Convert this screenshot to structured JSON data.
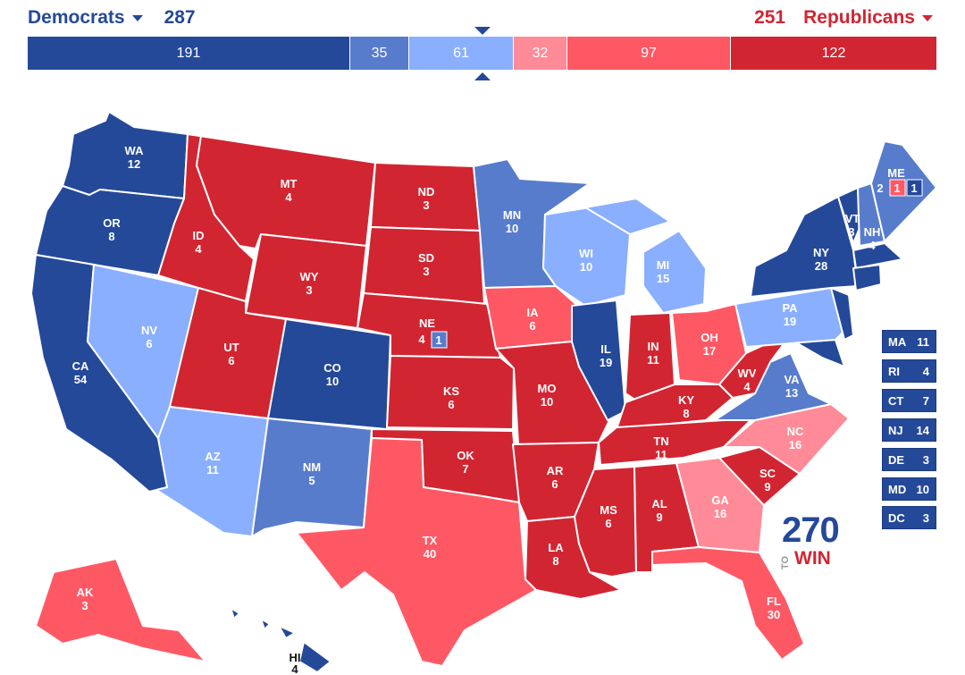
{
  "democrats": {
    "label": "Democrats",
    "total": "287"
  },
  "republicans": {
    "label": "Republicans",
    "total": "251"
  },
  "tally": [
    {
      "value": "191",
      "color": "#244999",
      "category": "safe-dem"
    },
    {
      "value": "35",
      "color": "#587ccc",
      "category": "likely-dem"
    },
    {
      "value": "61",
      "color": "#8aafff",
      "category": "lean-dem"
    },
    {
      "value": "32",
      "color": "#ff8b98",
      "category": "lean-rep"
    },
    {
      "value": "97",
      "color": "#ff5865",
      "category": "likely-rep"
    },
    {
      "value": "122",
      "color": "#d22532",
      "category": "safe-rep"
    }
  ],
  "colors": {
    "safe_dem": "#244999",
    "likely_dem": "#587ccc",
    "lean_dem": "#8aafff",
    "lean_rep": "#ff8b98",
    "likely_rep": "#ff5865",
    "safe_rep": "#d22532"
  },
  "states": {
    "WA": {
      "abbr": "WA",
      "ev": "12"
    },
    "OR": {
      "abbr": "OR",
      "ev": "8"
    },
    "CA": {
      "abbr": "CA",
      "ev": "54"
    },
    "NV": {
      "abbr": "NV",
      "ev": "6"
    },
    "ID": {
      "abbr": "ID",
      "ev": "4"
    },
    "MT": {
      "abbr": "MT",
      "ev": "4"
    },
    "WY": {
      "abbr": "WY",
      "ev": "3"
    },
    "UT": {
      "abbr": "UT",
      "ev": "6"
    },
    "AZ": {
      "abbr": "AZ",
      "ev": "11"
    },
    "CO": {
      "abbr": "CO",
      "ev": "10"
    },
    "NM": {
      "abbr": "NM",
      "ev": "5"
    },
    "ND": {
      "abbr": "ND",
      "ev": "3"
    },
    "SD": {
      "abbr": "SD",
      "ev": "3"
    },
    "NE": {
      "abbr": "NE",
      "ev": "4",
      "district": "1"
    },
    "KS": {
      "abbr": "KS",
      "ev": "6"
    },
    "OK": {
      "abbr": "OK",
      "ev": "7"
    },
    "TX": {
      "abbr": "TX",
      "ev": "40"
    },
    "MN": {
      "abbr": "MN",
      "ev": "10"
    },
    "IA": {
      "abbr": "IA",
      "ev": "6"
    },
    "MO": {
      "abbr": "MO",
      "ev": "10"
    },
    "AR": {
      "abbr": "AR",
      "ev": "6"
    },
    "LA": {
      "abbr": "LA",
      "ev": "8"
    },
    "WI": {
      "abbr": "WI",
      "ev": "10"
    },
    "IL": {
      "abbr": "IL",
      "ev": "19"
    },
    "MS": {
      "abbr": "MS",
      "ev": "6"
    },
    "MI": {
      "abbr": "MI",
      "ev": "15"
    },
    "IN": {
      "abbr": "IN",
      "ev": "11"
    },
    "KY": {
      "abbr": "KY",
      "ev": "8"
    },
    "TN": {
      "abbr": "TN",
      "ev": "11"
    },
    "AL": {
      "abbr": "AL",
      "ev": "9"
    },
    "OH": {
      "abbr": "OH",
      "ev": "17"
    },
    "WV": {
      "abbr": "WV",
      "ev": "4"
    },
    "VA": {
      "abbr": "VA",
      "ev": "13"
    },
    "NC": {
      "abbr": "NC",
      "ev": "16"
    },
    "SC": {
      "abbr": "SC",
      "ev": "9"
    },
    "GA": {
      "abbr": "GA",
      "ev": "16"
    },
    "FL": {
      "abbr": "FL",
      "ev": "30"
    },
    "PA": {
      "abbr": "PA",
      "ev": "19"
    },
    "NY": {
      "abbr": "NY",
      "ev": "28"
    },
    "VT": {
      "abbr": "VT",
      "ev": "3"
    },
    "NH": {
      "abbr": "NH",
      "ev": "4"
    },
    "ME": {
      "abbr": "ME",
      "ev": "2",
      "district_rep": "1",
      "district_dem": "1"
    },
    "AK": {
      "abbr": "AK",
      "ev": "3"
    },
    "HI": {
      "abbr": "HI",
      "ev": "4"
    }
  },
  "small_states": [
    {
      "abbr": "MA",
      "ev": "11"
    },
    {
      "abbr": "RI",
      "ev": "4"
    },
    {
      "abbr": "CT",
      "ev": "7"
    },
    {
      "abbr": "NJ",
      "ev": "14"
    },
    {
      "abbr": "DE",
      "ev": "3"
    },
    {
      "abbr": "MD",
      "ev": "10"
    },
    {
      "abbr": "DC",
      "ev": "3"
    }
  ],
  "logo": {
    "number": "270",
    "to": "TO",
    "win": "WIN"
  }
}
